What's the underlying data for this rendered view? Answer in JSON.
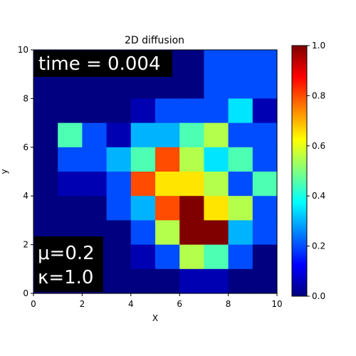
{
  "chart_data": {
    "type": "heatmap",
    "title": "2D diffusion",
    "xlabel": "X",
    "ylabel": "y",
    "xlim": [
      0,
      10
    ],
    "ylim": [
      0,
      10
    ],
    "xticks": [
      "0",
      "2",
      "4",
      "6",
      "8",
      "10"
    ],
    "yticks": [
      "0",
      "2",
      "4",
      "6",
      "8",
      "10"
    ],
    "colormap": "jet",
    "colorbar": {
      "range": [
        0,
        1
      ],
      "ticks": [
        "0.0",
        "0.2",
        "0.4",
        "0.6",
        "0.8",
        "1.0"
      ]
    },
    "grid": [
      [
        0.0,
        0.0,
        0.0,
        0.0,
        0.0,
        0.0,
        0.0,
        0.2,
        0.2,
        0.2
      ],
      [
        0.0,
        0.0,
        0.0,
        0.0,
        0.0,
        0.0,
        0.0,
        0.2,
        0.2,
        0.2
      ],
      [
        0.0,
        0.0,
        0.0,
        0.0,
        0.05,
        0.2,
        0.2,
        0.2,
        0.35,
        0.05
      ],
      [
        0.0,
        0.45,
        0.2,
        0.05,
        0.3,
        0.3,
        0.45,
        0.55,
        0.2,
        0.2
      ],
      [
        0.0,
        0.2,
        0.2,
        0.3,
        0.45,
        0.8,
        0.55,
        0.35,
        0.45,
        0.2
      ],
      [
        0.0,
        0.05,
        0.05,
        0.2,
        0.8,
        0.65,
        0.65,
        0.55,
        0.2,
        0.45
      ],
      [
        0.0,
        0.0,
        0.0,
        0.2,
        0.3,
        0.8,
        1.0,
        0.65,
        0.55,
        0.2
      ],
      [
        0.0,
        0.0,
        0.0,
        0.0,
        0.2,
        0.55,
        1.0,
        1.0,
        0.3,
        0.2
      ],
      [
        0.0,
        0.05,
        0.0,
        0.0,
        0.05,
        0.2,
        0.55,
        0.45,
        0.2,
        0.0
      ],
      [
        0.0,
        0.0,
        0.0,
        0.0,
        0.0,
        0.0,
        0.05,
        0.05,
        0.0,
        0.0
      ]
    ],
    "annotations": {
      "time": "time = 0.004",
      "mu": "μ=0.2",
      "kappa": "κ=1.0"
    }
  }
}
